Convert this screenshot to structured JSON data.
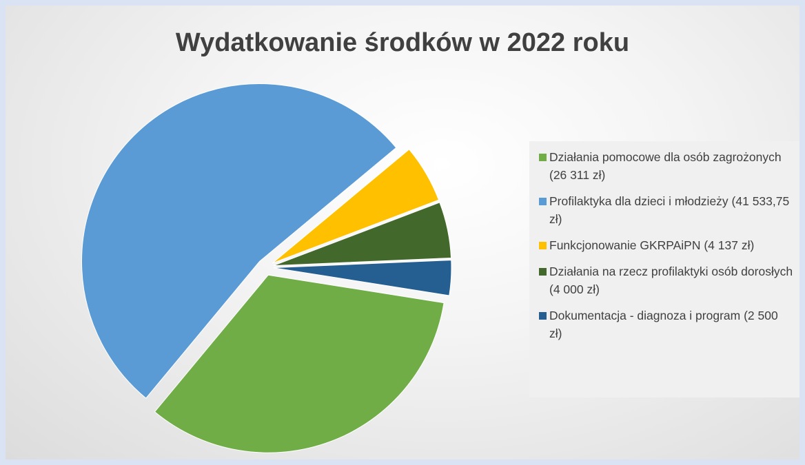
{
  "chart_data": {
    "type": "pie",
    "title": "Wydatkowanie środków w 2022 roku",
    "categories": [
      "Działania pomocowe dla osób zagrożonych (26 311 zł)",
      "Profilaktyka dla dzieci i młodzieży (41 533,75 zł)",
      "Funkcjonowanie GKRPAiPN (4 137 zł)",
      "Działania na rzecz profilaktyki osób dorosłych (4 000 zł)",
      "Dokumentacja - diagnoza i program (2 500 zł)"
    ],
    "values": [
      26311,
      41533.75,
      4137,
      4000,
      2500
    ],
    "colors": [
      "#70ad47",
      "#5b9bd5",
      "#ffc000",
      "#43682b",
      "#255e91"
    ],
    "legend": "right"
  }
}
